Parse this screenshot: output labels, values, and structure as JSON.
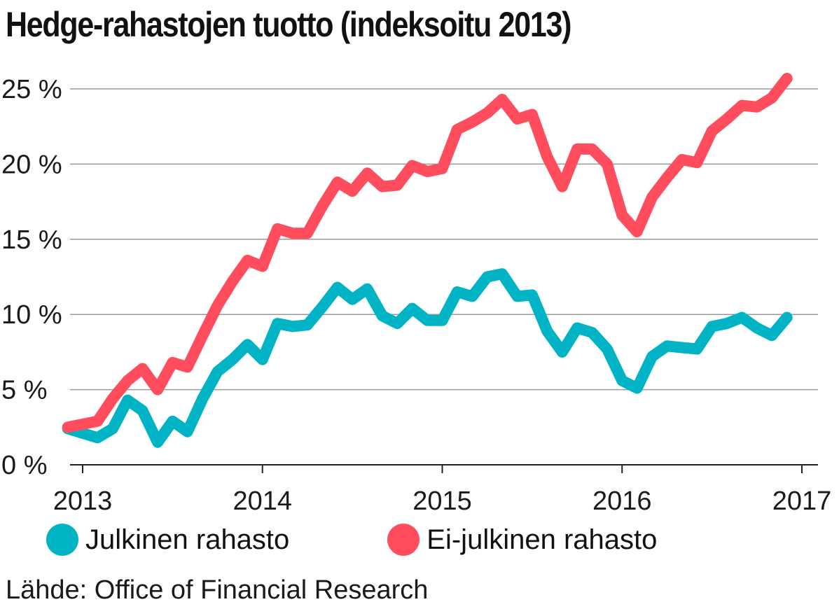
{
  "chart_data": {
    "type": "line",
    "title": "Hedge-rahastojen tuotto (indeksoitu 2013)",
    "xlabel": "",
    "ylabel": "",
    "x_ticks": [
      "2013",
      "2014",
      "2015",
      "2016",
      "2017"
    ],
    "y_ticks": [
      "0 %",
      "5 %",
      "10 %",
      "15 %",
      "20 %",
      "25 %"
    ],
    "y_tick_values": [
      0,
      5,
      10,
      15,
      20,
      25
    ],
    "xlim": [
      2013,
      2017
    ],
    "ylim": [
      0,
      26.5
    ],
    "grid": true,
    "legend_position": "bottom",
    "series": [
      {
        "name": "Julkinen rahasto",
        "color": "#00b4c5",
        "x": [
          2012.917,
          2013.0,
          2013.083,
          2013.167,
          2013.25,
          2013.333,
          2013.417,
          2013.5,
          2013.583,
          2013.667,
          2013.75,
          2013.833,
          2013.917,
          2014.0,
          2014.083,
          2014.167,
          2014.25,
          2014.333,
          2014.417,
          2014.5,
          2014.583,
          2014.667,
          2014.75,
          2014.833,
          2014.917,
          2015.0,
          2015.083,
          2015.167,
          2015.25,
          2015.333,
          2015.417,
          2015.5,
          2015.583,
          2015.667,
          2015.75,
          2015.833,
          2015.917,
          2016.0,
          2016.083,
          2016.167,
          2016.25,
          2016.333,
          2016.417,
          2016.5,
          2016.583,
          2016.667,
          2016.75,
          2016.833,
          2016.917
        ],
        "values": [
          2.4,
          2.1,
          1.8,
          2.4,
          4.3,
          3.6,
          1.5,
          2.9,
          2.2,
          4.4,
          6.2,
          7.0,
          8.0,
          7.0,
          9.4,
          9.2,
          9.3,
          10.5,
          11.8,
          11.0,
          11.7,
          9.9,
          9.4,
          10.4,
          9.6,
          9.6,
          11.5,
          11.2,
          12.5,
          12.7,
          11.2,
          11.3,
          8.9,
          7.5,
          9.1,
          8.8,
          7.7,
          5.6,
          5.1,
          7.2,
          7.9,
          7.8,
          7.7,
          9.2,
          9.4,
          9.8,
          9.1,
          8.6,
          9.8
        ]
      },
      {
        "name": "Ei-julkinen rahasto",
        "color": "#ff4d5e",
        "x": [
          2012.917,
          2013.0,
          2013.083,
          2013.167,
          2013.25,
          2013.333,
          2013.417,
          2013.5,
          2013.583,
          2013.667,
          2013.75,
          2013.833,
          2013.917,
          2014.0,
          2014.083,
          2014.167,
          2014.25,
          2014.333,
          2014.417,
          2014.5,
          2014.583,
          2014.667,
          2014.75,
          2014.833,
          2014.917,
          2015.0,
          2015.083,
          2015.167,
          2015.25,
          2015.333,
          2015.417,
          2015.5,
          2015.583,
          2015.667,
          2015.75,
          2015.833,
          2015.917,
          2016.0,
          2016.083,
          2016.167,
          2016.25,
          2016.333,
          2016.417,
          2016.5,
          2016.583,
          2016.667,
          2016.75,
          2016.833,
          2016.917
        ],
        "values": [
          2.5,
          2.7,
          2.9,
          4.4,
          5.6,
          6.4,
          5.0,
          6.8,
          6.5,
          8.6,
          10.6,
          12.2,
          13.6,
          13.2,
          15.7,
          15.4,
          15.4,
          17.2,
          18.8,
          18.2,
          19.4,
          18.5,
          18.6,
          19.9,
          19.5,
          19.7,
          22.3,
          22.8,
          23.4,
          24.3,
          23.0,
          23.3,
          20.5,
          18.5,
          21.0,
          21.0,
          20.0,
          16.6,
          15.5,
          17.8,
          19.1,
          20.3,
          20.1,
          22.2,
          23.0,
          23.9,
          23.8,
          24.4,
          25.7
        ]
      }
    ]
  },
  "legend": {
    "public_label": "Julkinen rahasto",
    "private_label": "Ei-julkinen rahasto"
  },
  "source": {
    "text": "Lähde: Office of Financial Research"
  }
}
